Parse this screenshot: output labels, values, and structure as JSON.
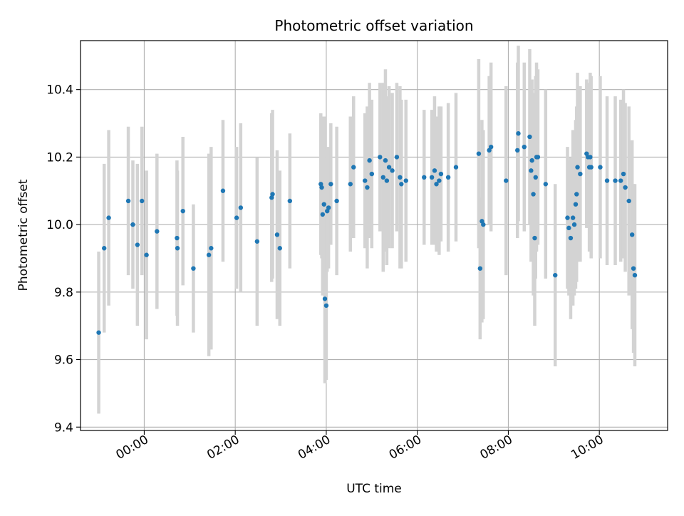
{
  "chart_data": {
    "type": "scatter",
    "title": "Photometric offset variation",
    "xlabel": "UTC time",
    "ylabel": "Photometric offset",
    "x_unit": "hours UTC",
    "xlim": [
      -1.4,
      11.5
    ],
    "ylim": [
      9.39,
      10.545
    ],
    "x_ticks": [
      {
        "value": 0,
        "label": "00:00"
      },
      {
        "value": 2,
        "label": "02:00"
      },
      {
        "value": 4,
        "label": "04:00"
      },
      {
        "value": 6,
        "label": "06:00"
      },
      {
        "value": 8,
        "label": "08:00"
      },
      {
        "value": 10,
        "label": "10:00"
      }
    ],
    "y_ticks": [
      {
        "value": 9.4,
        "label": "9.4"
      },
      {
        "value": 9.6,
        "label": "9.6"
      },
      {
        "value": 9.8,
        "label": "9.8"
      },
      {
        "value": 10.0,
        "label": "10.0"
      },
      {
        "value": 10.2,
        "label": "10.2"
      },
      {
        "value": 10.4,
        "label": "10.4"
      }
    ],
    "grid": true,
    "colors": {
      "marker": "#1f77b4",
      "errorbar": "#d3d3d3",
      "grid": "#b0b0b0"
    },
    "series": [
      {
        "x": [
          -1.0,
          -0.88,
          -0.78,
          -0.35,
          -0.25,
          -0.15,
          -0.05,
          0.05,
          0.28,
          0.72,
          0.73,
          0.85,
          1.08,
          1.42,
          1.47,
          1.73,
          2.03,
          2.12,
          2.48,
          2.8,
          2.82,
          2.92,
          2.98,
          3.2,
          3.88,
          3.9,
          3.92,
          3.95,
          3.97,
          4.0,
          4.02,
          4.05,
          4.1,
          4.23,
          4.53,
          4.6,
          4.85,
          4.9,
          4.95,
          5.0,
          5.18,
          5.25,
          5.3,
          5.33,
          5.38,
          5.45,
          5.55,
          5.62,
          5.65,
          5.75,
          6.15,
          6.32,
          6.38,
          6.42,
          6.48,
          6.52,
          6.68,
          6.85,
          7.35,
          7.38,
          7.42,
          7.45,
          7.58,
          7.62,
          7.95,
          8.2,
          8.22,
          8.35,
          8.47,
          8.5,
          8.52,
          8.55,
          8.58,
          8.6,
          8.62,
          8.65,
          8.82,
          9.03,
          9.3,
          9.33,
          9.37,
          9.42,
          9.45,
          9.48,
          9.5,
          9.52,
          9.58,
          9.72,
          9.75,
          9.78,
          9.8,
          9.82,
          10.02,
          10.17,
          10.35,
          10.47,
          10.53,
          10.57,
          10.65,
          10.72,
          10.75,
          10.78
        ],
        "y": [
          9.68,
          9.93,
          10.02,
          10.07,
          10.0,
          9.94,
          10.07,
          9.91,
          9.98,
          9.96,
          9.93,
          10.04,
          9.87,
          9.91,
          9.93,
          10.1,
          10.02,
          10.05,
          9.95,
          10.08,
          10.09,
          9.97,
          9.93,
          10.07,
          10.12,
          10.11,
          10.03,
          10.06,
          9.78,
          9.76,
          10.04,
          10.05,
          10.12,
          10.07,
          10.12,
          10.17,
          10.13,
          10.11,
          10.19,
          10.15,
          10.2,
          10.14,
          10.19,
          10.13,
          10.17,
          10.16,
          10.2,
          10.14,
          10.12,
          10.13,
          10.14,
          10.14,
          10.16,
          10.12,
          10.13,
          10.15,
          10.14,
          10.17,
          10.21,
          9.87,
          10.01,
          10.0,
          10.22,
          10.23,
          10.13,
          10.22,
          10.27,
          10.23,
          10.26,
          10.16,
          10.19,
          10.09,
          9.96,
          10.14,
          10.2,
          10.2,
          10.12,
          9.85,
          10.02,
          9.99,
          9.96,
          10.02,
          10.0,
          10.06,
          10.09,
          10.17,
          10.15,
          10.21,
          10.2,
          10.17,
          10.2,
          10.17,
          10.17,
          10.13,
          10.13,
          10.13,
          10.15,
          10.11,
          10.07,
          9.97,
          9.87,
          9.85
        ],
        "err": [
          0.24,
          0.25,
          0.26,
          0.22,
          0.19,
          0.24,
          0.22,
          0.25,
          0.23,
          0.23,
          0.23,
          0.22,
          0.19,
          0.3,
          0.3,
          0.21,
          0.21,
          0.25,
          0.25,
          0.25,
          0.25,
          0.25,
          0.23,
          0.2,
          0.21,
          0.21,
          0.24,
          0.26,
          0.25,
          0.22,
          0.18,
          0.18,
          0.18,
          0.22,
          0.2,
          0.21,
          0.2,
          0.24,
          0.23,
          0.22,
          0.22,
          0.28,
          0.27,
          0.25,
          0.24,
          0.23,
          0.22,
          0.27,
          0.25,
          0.24,
          0.2,
          0.2,
          0.22,
          0.2,
          0.22,
          0.2,
          0.22,
          0.22,
          0.28,
          0.21,
          0.3,
          0.28,
          0.22,
          0.25,
          0.28,
          0.26,
          0.26,
          0.25,
          0.26,
          0.27,
          0.24,
          0.3,
          0.26,
          0.3,
          0.28,
          0.26,
          0.28,
          0.27,
          0.21,
          0.2,
          0.24,
          0.26,
          0.21,
          0.25,
          0.26,
          0.28,
          0.26,
          0.22,
          0.21,
          0.25,
          0.25,
          0.27,
          0.27,
          0.25,
          0.25,
          0.24,
          0.25,
          0.25,
          0.28,
          0.28,
          0.25,
          0.27
        ]
      }
    ]
  }
}
